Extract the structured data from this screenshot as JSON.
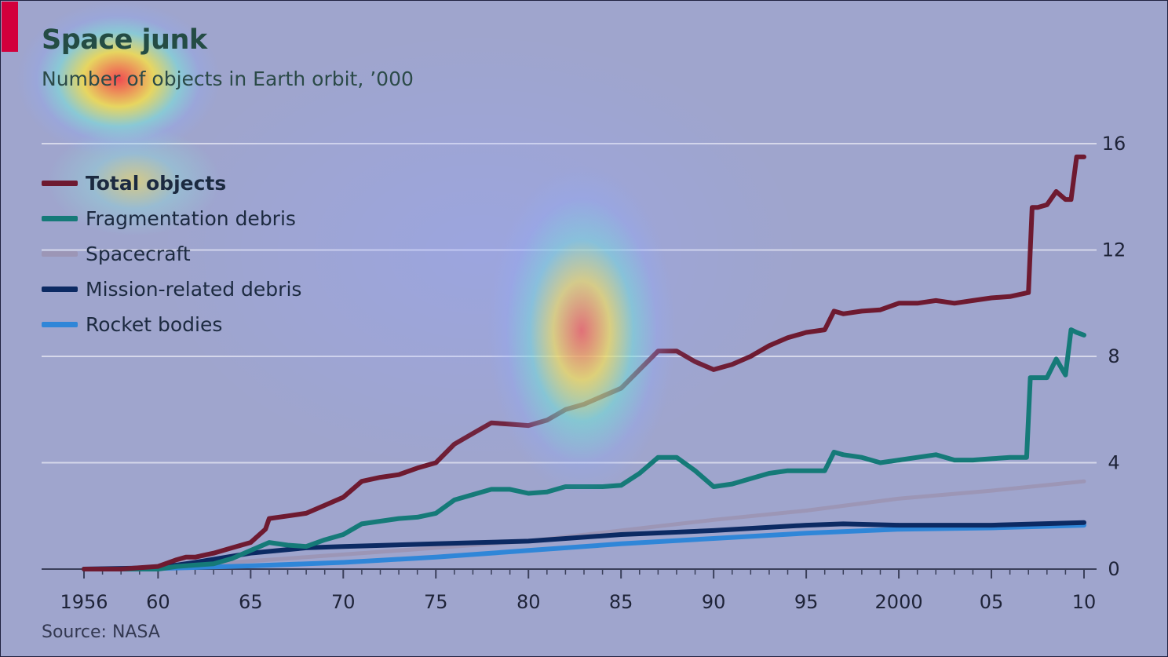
{
  "header": {
    "title": "Space junk",
    "subtitle": "Number of objects in Earth orbit, ’000"
  },
  "footer": {
    "source": "Source: NASA"
  },
  "colors": {
    "background": "#9fa5cd",
    "accent": "#d2003c",
    "gridline": "#d6d8ea",
    "total": "#6e1a30",
    "fragmentation": "#157a78",
    "spacecraft": "#9c96b6",
    "mission": "#0c2a63",
    "rocket": "#2f86d8"
  },
  "chart_data": {
    "type": "line",
    "title": "Space junk",
    "subtitle": "Number of objects in Earth orbit, ’000",
    "x_tick_labels": [
      "1956",
      "60",
      "65",
      "70",
      "75",
      "80",
      "85",
      "90",
      "95",
      "2000",
      "05",
      "10"
    ],
    "x_tick_years": [
      1956,
      1960,
      1965,
      1970,
      1975,
      1980,
      1985,
      1990,
      1995,
      2000,
      2005,
      2010
    ],
    "xlim": [
      1956,
      2010
    ],
    "y_tick_labels": [
      "0",
      "4",
      "8",
      "12",
      "16"
    ],
    "y_ticks": [
      0,
      4,
      8,
      12,
      16
    ],
    "ylim": [
      0,
      16
    ],
    "y_axis_side": "right",
    "grid": true,
    "legend_position": "top-left",
    "series": [
      {
        "name": "Total objects",
        "color": "#6e1a30",
        "x": [
          1956,
          1957,
          1958,
          1959,
          1960,
          1961,
          1961.5,
          1962,
          1963,
          1964,
          1965,
          1965.8,
          1966,
          1967,
          1968,
          1969,
          1970,
          1971,
          1972,
          1973,
          1974,
          1975,
          1976,
          1977,
          1978,
          1979,
          1980,
          1981,
          1982,
          1983,
          1984,
          1985,
          1986,
          1987,
          1988,
          1989,
          1990,
          1991,
          1992,
          1993,
          1994,
          1995,
          1996,
          1996.5,
          1997,
          1998,
          1999,
          2000,
          2001,
          2002,
          2003,
          2004,
          2005,
          2006,
          2007,
          2007.2,
          2007.5,
          2008,
          2008.5,
          2009,
          2009.3,
          2009.6,
          2010
        ],
        "y": [
          0,
          0,
          0,
          0.05,
          0.1,
          0.35,
          0.45,
          0.45,
          0.6,
          0.8,
          1.0,
          1.5,
          1.9,
          2.0,
          2.1,
          2.4,
          2.7,
          3.3,
          3.45,
          3.55,
          3.8,
          4.0,
          4.7,
          5.1,
          5.5,
          5.45,
          5.4,
          5.6,
          6.0,
          6.2,
          6.5,
          6.8,
          7.5,
          8.2,
          8.2,
          7.8,
          7.5,
          7.7,
          8.0,
          8.4,
          8.7,
          8.9,
          9.0,
          9.7,
          9.6,
          9.7,
          9.75,
          10.0,
          10.0,
          10.1,
          10.0,
          10.1,
          10.2,
          10.25,
          10.4,
          13.6,
          13.6,
          13.7,
          14.2,
          13.9,
          13.9,
          15.5,
          15.5
        ]
      },
      {
        "name": "Fragmentation debris",
        "color": "#157a78",
        "x": [
          1956,
          1960,
          1961,
          1962,
          1963,
          1964,
          1965,
          1966,
          1967,
          1968,
          1969,
          1970,
          1971,
          1972,
          1973,
          1974,
          1975,
          1976,
          1977,
          1978,
          1979,
          1980,
          1981,
          1982,
          1983,
          1984,
          1985,
          1986,
          1987,
          1988,
          1989,
          1990,
          1991,
          1992,
          1993,
          1994,
          1995,
          1996,
          1996.5,
          1997,
          1998,
          1999,
          2000,
          2001,
          2002,
          2003,
          2004,
          2005,
          2006,
          2006.9,
          2007.1,
          2007.5,
          2008,
          2008.5,
          2009,
          2009.3,
          2009.6,
          2010
        ],
        "y": [
          0,
          0,
          0.1,
          0.15,
          0.2,
          0.4,
          0.7,
          1.0,
          0.9,
          0.85,
          1.1,
          1.3,
          1.7,
          1.8,
          1.9,
          1.95,
          2.1,
          2.6,
          2.8,
          3.0,
          3.0,
          2.85,
          2.9,
          3.1,
          3.1,
          3.1,
          3.15,
          3.6,
          4.2,
          4.2,
          3.7,
          3.1,
          3.2,
          3.4,
          3.6,
          3.7,
          3.7,
          3.7,
          4.4,
          4.3,
          4.2,
          4.0,
          4.1,
          4.2,
          4.3,
          4.1,
          4.1,
          4.15,
          4.2,
          4.2,
          7.2,
          7.2,
          7.2,
          7.9,
          7.3,
          9.0,
          8.9,
          8.8
        ]
      },
      {
        "name": "Spacecraft",
        "color": "#9c96b6",
        "x": [
          1956,
          1960,
          1965,
          1970,
          1975,
          1980,
          1985,
          1990,
          1995,
          2000,
          2005,
          2010
        ],
        "y": [
          0,
          0.05,
          0.3,
          0.55,
          0.8,
          1.05,
          1.45,
          1.85,
          2.2,
          2.65,
          2.95,
          3.3
        ]
      },
      {
        "name": "Mission-related debris",
        "color": "#0c2a63",
        "x": [
          1956,
          1960,
          1962,
          1965,
          1968,
          1970,
          1975,
          1980,
          1985,
          1990,
          1995,
          1997,
          2000,
          2005,
          2010
        ],
        "y": [
          0,
          0.05,
          0.25,
          0.6,
          0.8,
          0.85,
          0.95,
          1.05,
          1.3,
          1.45,
          1.65,
          1.7,
          1.65,
          1.65,
          1.75
        ]
      },
      {
        "name": "Rocket bodies",
        "color": "#2f86d8",
        "x": [
          1956,
          1960,
          1965,
          1970,
          1975,
          1980,
          1985,
          1990,
          1995,
          2000,
          2005,
          2010
        ],
        "y": [
          0,
          0.02,
          0.12,
          0.25,
          0.45,
          0.7,
          0.95,
          1.15,
          1.35,
          1.5,
          1.55,
          1.65
        ]
      }
    ]
  }
}
